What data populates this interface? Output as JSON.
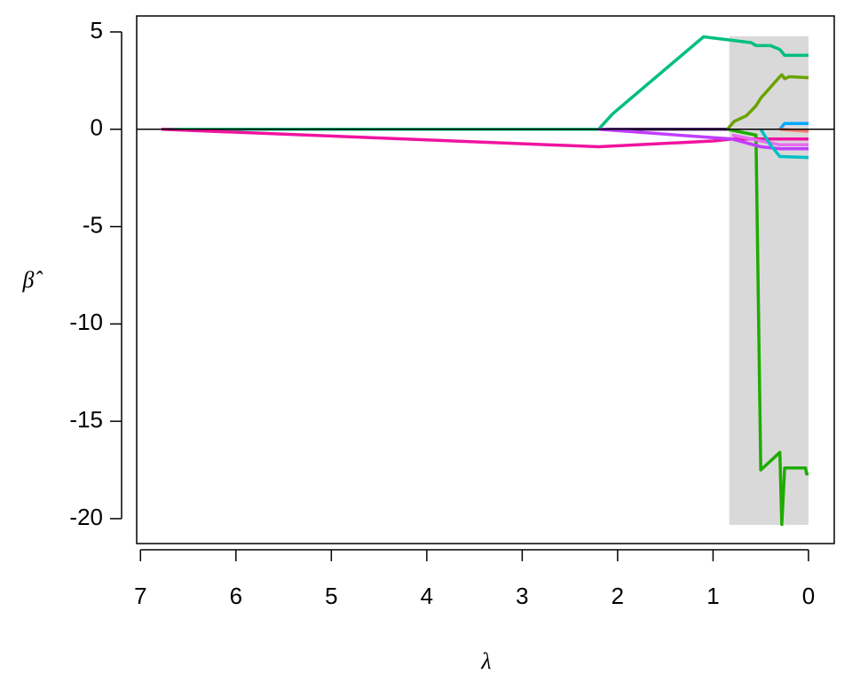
{
  "chart_data": {
    "type": "line",
    "xlabel": "λ",
    "ylabel": "β̂",
    "xlim": [
      7.04,
      -0.27
    ],
    "ylim": [
      -21.28,
      5.82
    ],
    "xticks": [
      7,
      6,
      5,
      4,
      3,
      2,
      1,
      0
    ],
    "yticks": [
      5,
      0,
      -5,
      -10,
      -15,
      -20
    ],
    "hline": 0,
    "shaded_region": {
      "x": [
        0.83,
        0
      ],
      "y": [
        -20.32,
        4.78
      ],
      "color": "#d9d9d9"
    },
    "series": [
      {
        "color": "#5b2c8a",
        "x": [
          6.78,
          0.85
        ],
        "values": [
          0,
          0
        ]
      },
      {
        "color": "#00bf7d",
        "x": [
          6.78,
          2.2,
          2.05,
          1.1,
          0.6,
          0.55,
          0.4,
          0.3,
          0.25,
          0
        ],
        "values": [
          0,
          0,
          0.8,
          4.75,
          4.45,
          4.3,
          4.3,
          4.1,
          3.8,
          3.8
        ]
      },
      {
        "color": "#6ba300",
        "x": [
          0.85,
          0.78,
          0.65,
          0.55,
          0.5,
          0.3,
          0.28,
          0.25,
          0.2,
          0
        ],
        "values": [
          0,
          0.4,
          0.7,
          1.2,
          1.6,
          2.7,
          2.8,
          2.6,
          2.7,
          2.65
        ]
      },
      {
        "color": "#1fab00",
        "x": [
          0.85,
          0.55,
          0.5,
          0.3,
          0.28,
          0.25,
          0.03,
          0.02,
          0
        ],
        "values": [
          0,
          -0.3,
          -17.5,
          -16.6,
          -20.3,
          -17.4,
          -17.4,
          -17.7,
          -17.7
        ]
      },
      {
        "color": "#f0139f",
        "x": [
          6.78,
          2.2,
          1.0,
          0.8,
          0
        ],
        "values": [
          0,
          -0.9,
          -0.6,
          -0.5,
          -0.5
        ]
      },
      {
        "color": "#c13dff",
        "x": [
          2.2,
          0.8,
          0.5,
          0.3,
          0
        ],
        "values": [
          0,
          -0.5,
          -0.9,
          -1.0,
          -1.0
        ]
      },
      {
        "color": "#e76bf3",
        "x": [
          0.8,
          0.3,
          0
        ],
        "values": [
          -0.3,
          -0.8,
          -0.8
        ]
      },
      {
        "color": "#00bfc4",
        "x": [
          0.5,
          0.4,
          0.3,
          0
        ],
        "values": [
          0,
          -0.8,
          -1.4,
          -1.45
        ]
      },
      {
        "color": "#00a9ff",
        "x": [
          0.3,
          0.25,
          0
        ],
        "values": [
          0,
          0.3,
          0.3
        ]
      },
      {
        "color": "#f8766d",
        "x": [
          0.3,
          0
        ],
        "values": [
          0,
          -0.1
        ]
      }
    ]
  }
}
